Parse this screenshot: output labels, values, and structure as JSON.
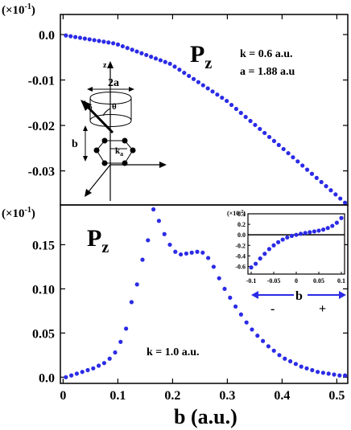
{
  "chart_data": [
    {
      "type": "scatter",
      "panel": "top",
      "scale_label": "(×10",
      "scale_exp": "-1",
      "scale_close": ")",
      "title_main": "P",
      "title_sub": "z",
      "annotation_lines": [
        "k = 0.6 a.u.",
        "a = 1.88 a.u"
      ],
      "xlim": [
        0,
        0.52
      ],
      "ylim": [
        -0.0375,
        0.0
      ],
      "yticks": [
        {
          "value": 0.0,
          "label": "0.0"
        },
        {
          "value": -0.01,
          "label": "-0.01"
        },
        {
          "value": -0.02,
          "label": "-0.02"
        },
        {
          "value": -0.03,
          "label": "-0.03"
        }
      ],
      "series": [
        {
          "color": "#2b2be6",
          "curve": "quadratic",
          "x_start": 0.01,
          "x_end": 0.515,
          "count": 60,
          "points_xy": [
            [
              0.01,
              -0.0002
            ],
            [
              0.1,
              -0.002
            ],
            [
              0.2,
              -0.0065
            ],
            [
              0.3,
              -0.0145
            ],
            [
              0.4,
              -0.0248
            ],
            [
              0.515,
              -0.037
            ]
          ]
        }
      ],
      "inset_diagram": {
        "labels": {
          "z": "z",
          "two_a": "2a",
          "kb": "k",
          "kb_sub": "b",
          "theta": "θ",
          "b": "b",
          "ka": "k",
          "ka_sub": "a"
        }
      }
    },
    {
      "type": "scatter",
      "panel": "bottom",
      "scale_label": "(×10",
      "scale_exp": "-1",
      "scale_close": ")",
      "title_main": "P",
      "title_sub": "z",
      "annotation": "k = 1.0 a.u.",
      "xlabel": "b (a.u.)",
      "xlim": [
        -0.005,
        0.52
      ],
      "ylim": [
        -0.007,
        0.195
      ],
      "xticks": [
        {
          "value": 0,
          "label": "0"
        },
        {
          "value": 0.1,
          "label": "0.1"
        },
        {
          "value": 0.2,
          "label": "0.2"
        },
        {
          "value": 0.3,
          "label": "0.3"
        },
        {
          "value": 0.4,
          "label": "0.4"
        },
        {
          "value": 0.5,
          "label": "0.5"
        }
      ],
      "yticks": [
        {
          "value": 0.0,
          "label": "0.0"
        },
        {
          "value": 0.05,
          "label": "0.05"
        },
        {
          "value": 0.1,
          "label": "0.10"
        },
        {
          "value": 0.15,
          "label": "0.15"
        }
      ],
      "series": [
        {
          "color": "#2b2be6",
          "points": [
            [
              0.005,
              0.0
            ],
            [
              0.015,
              0.002
            ],
            [
              0.025,
              0.004
            ],
            [
              0.035,
              0.006
            ],
            [
              0.045,
              0.008
            ],
            [
              0.055,
              0.01
            ],
            [
              0.065,
              0.013
            ],
            [
              0.075,
              0.016
            ],
            [
              0.085,
              0.021
            ],
            [
              0.095,
              0.028
            ],
            [
              0.105,
              0.04
            ],
            [
              0.115,
              0.055
            ],
            [
              0.125,
              0.085
            ],
            [
              0.135,
              0.105
            ],
            [
              0.145,
              0.133
            ],
            [
              0.155,
              0.155
            ],
            [
              0.165,
              0.19
            ],
            [
              0.175,
              0.177
            ],
            [
              0.185,
              0.162
            ],
            [
              0.195,
              0.15
            ],
            [
              0.205,
              0.142
            ],
            [
              0.215,
              0.139
            ],
            [
              0.225,
              0.14
            ],
            [
              0.235,
              0.141
            ],
            [
              0.245,
              0.142
            ],
            [
              0.255,
              0.141
            ],
            [
              0.265,
              0.135
            ],
            [
              0.275,
              0.125
            ],
            [
              0.285,
              0.112
            ],
            [
              0.295,
              0.1
            ],
            [
              0.305,
              0.09
            ],
            [
              0.315,
              0.08
            ],
            [
              0.325,
              0.071
            ],
            [
              0.335,
              0.062
            ],
            [
              0.345,
              0.054
            ],
            [
              0.355,
              0.047
            ],
            [
              0.365,
              0.041
            ],
            [
              0.375,
              0.035
            ],
            [
              0.385,
              0.03
            ],
            [
              0.395,
              0.025
            ],
            [
              0.405,
              0.021
            ],
            [
              0.415,
              0.018
            ],
            [
              0.425,
              0.015
            ],
            [
              0.435,
              0.012
            ],
            [
              0.445,
              0.01
            ],
            [
              0.455,
              0.008
            ],
            [
              0.465,
              0.006
            ],
            [
              0.475,
              0.005
            ],
            [
              0.485,
              0.004
            ],
            [
              0.495,
              0.003
            ],
            [
              0.505,
              0.002
            ],
            [
              0.515,
              0.002
            ]
          ]
        }
      ],
      "inset": {
        "scale_label": "(×10",
        "scale_exp": "-2",
        "scale_close": ")",
        "xlim": [
          -0.1,
          0.1
        ],
        "ylim": [
          -0.7,
          0.4
        ],
        "xticks": [
          {
            "value": -0.1,
            "label": "-0.1"
          },
          {
            "value": -0.05,
            "label": "-0.05"
          },
          {
            "value": 0,
            "label": "0"
          },
          {
            "value": 0.05,
            "label": "0.05"
          },
          {
            "value": 0.1,
            "label": "0.1"
          }
        ],
        "yticks": [
          {
            "value": 0.4,
            "label": "0.4"
          },
          {
            "value": 0.2,
            "label": "0.2"
          },
          {
            "value": 0.0,
            "label": "0.0"
          },
          {
            "value": -0.2,
            "label": "-0.2"
          },
          {
            "value": -0.4,
            "label": "-0.4"
          },
          {
            "value": -0.6,
            "label": "-0.6"
          }
        ],
        "zero_line": true,
        "series": [
          {
            "color": "#2b2be6",
            "points": [
              [
                -0.1,
                -0.62
              ],
              [
                -0.09,
                -0.55
              ],
              [
                -0.08,
                -0.45
              ],
              [
                -0.07,
                -0.36
              ],
              [
                -0.06,
                -0.27
              ],
              [
                -0.05,
                -0.2
              ],
              [
                -0.04,
                -0.14
              ],
              [
                -0.03,
                -0.09
              ],
              [
                -0.02,
                -0.05
              ],
              [
                -0.01,
                -0.02
              ],
              [
                0.0,
                0.0
              ],
              [
                0.01,
                0.02
              ],
              [
                0.02,
                0.035
              ],
              [
                0.03,
                0.05
              ],
              [
                0.04,
                0.065
              ],
              [
                0.05,
                0.08
              ],
              [
                0.06,
                0.1
              ],
              [
                0.07,
                0.13
              ],
              [
                0.08,
                0.17
              ],
              [
                0.09,
                0.23
              ],
              [
                0.1,
                0.32
              ]
            ]
          }
        ],
        "legend_minus": "-",
        "legend_b": "b",
        "legend_plus": "+"
      }
    }
  ]
}
